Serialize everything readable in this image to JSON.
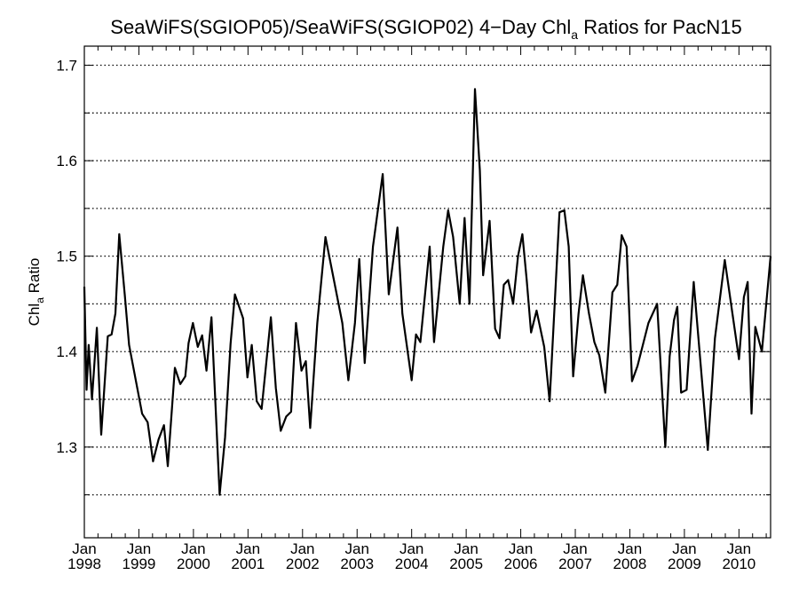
{
  "chart_data": {
    "type": "line",
    "title": {
      "prefix": "SeaWiFS(SGIOP05)/SeaWiFS(SGIOP02) 4−Day Chl",
      "subscript": "a",
      "suffix": " Ratios for PacN15"
    },
    "ylabel": {
      "prefix": "Chl",
      "subscript": "a",
      "suffix": " Ratio"
    },
    "xlabel": "",
    "xlim": [
      1998.0,
      2010.58
    ],
    "ylim": [
      1.205,
      1.72
    ],
    "y_ticks": [
      {
        "value": 1.3,
        "label": "1.3"
      },
      {
        "value": 1.4,
        "label": "1.4"
      },
      {
        "value": 1.5,
        "label": "1.5"
      },
      {
        "value": 1.6,
        "label": "1.6"
      },
      {
        "value": 1.7,
        "label": "1.7"
      }
    ],
    "y_minor_step": 0.05,
    "grid_y": [
      1.25,
      1.3,
      1.35,
      1.4,
      1.45,
      1.5,
      1.55,
      1.6,
      1.65,
      1.7
    ],
    "grid_style": "dotted",
    "x_ticks": [
      {
        "value": 1998,
        "month": "Jan",
        "year": "1998"
      },
      {
        "value": 1999,
        "month": "Jan",
        "year": "1999"
      },
      {
        "value": 2000,
        "month": "Jan",
        "year": "2000"
      },
      {
        "value": 2001,
        "month": "Jan",
        "year": "2001"
      },
      {
        "value": 2002,
        "month": "Jan",
        "year": "2002"
      },
      {
        "value": 2003,
        "month": "Jan",
        "year": "2003"
      },
      {
        "value": 2004,
        "month": "Jan",
        "year": "2004"
      },
      {
        "value": 2005,
        "month": "Jan",
        "year": "2005"
      },
      {
        "value": 2006,
        "month": "Jan",
        "year": "2006"
      },
      {
        "value": 2007,
        "month": "Jan",
        "year": "2007"
      },
      {
        "value": 2008,
        "month": "Jan",
        "year": "2008"
      },
      {
        "value": 2009,
        "month": "Jan",
        "year": "2009"
      },
      {
        "value": 2010,
        "month": "Jan",
        "year": "2010"
      }
    ],
    "x_minor_per_year": 4,
    "line_color": "#000000",
    "series": [
      {
        "x": [
          1998.0,
          1998.04,
          1998.08,
          1998.14,
          1998.23,
          1998.31,
          1998.43,
          1998.5,
          1998.57,
          1998.64,
          1998.74,
          1998.82,
          1999.06,
          1999.16,
          1999.26,
          1999.36,
          1999.46,
          1999.53,
          1999.66,
          1999.76,
          1999.85,
          1999.91,
          1999.99,
          2000.08,
          2000.16,
          2000.24,
          2000.33,
          2000.48,
          2000.58,
          2000.68,
          2000.76,
          2000.91,
          2000.99,
          2001.07,
          2001.16,
          2001.25,
          2001.42,
          2001.51,
          2001.6,
          2001.7,
          2001.79,
          2001.88,
          2001.98,
          2002.06,
          2002.14,
          2002.27,
          2002.42,
          2002.73,
          2002.84,
          2002.96,
          2003.04,
          2003.14,
          2003.29,
          2003.47,
          2003.58,
          2003.74,
          2003.83,
          2004.0,
          2004.08,
          2004.16,
          2004.33,
          2004.41,
          2004.58,
          2004.67,
          2004.76,
          2004.88,
          2004.97,
          2005.06,
          2005.16,
          2005.25,
          2005.31,
          2005.43,
          2005.53,
          2005.61,
          2005.69,
          2005.77,
          2005.86,
          2005.95,
          2006.03,
          2006.11,
          2006.19,
          2006.29,
          2006.43,
          2006.53,
          2006.71,
          2006.8,
          2006.88,
          2006.96,
          2007.06,
          2007.14,
          2007.25,
          2007.35,
          2007.44,
          2007.55,
          2007.68,
          2007.77,
          2007.85,
          2007.94,
          2008.04,
          2008.14,
          2008.34,
          2008.5,
          2008.65,
          2008.73,
          2008.81,
          2008.87,
          2008.94,
          2009.04,
          2009.17,
          2009.43,
          2009.56,
          2009.74,
          2009.88,
          2010.0,
          2010.09,
          2010.16,
          2010.23,
          2010.3,
          2010.42,
          2010.58
        ],
        "y": [
          1.468,
          1.36,
          1.407,
          1.35,
          1.425,
          1.313,
          1.416,
          1.418,
          1.44,
          1.523,
          1.46,
          1.407,
          1.335,
          1.326,
          1.285,
          1.308,
          1.323,
          1.28,
          1.383,
          1.366,
          1.374,
          1.409,
          1.43,
          1.405,
          1.417,
          1.38,
          1.436,
          1.25,
          1.31,
          1.408,
          1.46,
          1.435,
          1.373,
          1.407,
          1.348,
          1.34,
          1.436,
          1.362,
          1.317,
          1.332,
          1.337,
          1.43,
          1.38,
          1.39,
          1.32,
          1.43,
          1.52,
          1.43,
          1.37,
          1.43,
          1.497,
          1.388,
          1.51,
          1.586,
          1.46,
          1.53,
          1.44,
          1.37,
          1.418,
          1.41,
          1.51,
          1.41,
          1.51,
          1.548,
          1.52,
          1.45,
          1.54,
          1.45,
          1.675,
          1.59,
          1.48,
          1.537,
          1.424,
          1.414,
          1.47,
          1.475,
          1.45,
          1.5,
          1.523,
          1.475,
          1.42,
          1.443,
          1.405,
          1.348,
          1.546,
          1.548,
          1.51,
          1.374,
          1.44,
          1.48,
          1.44,
          1.41,
          1.396,
          1.357,
          1.462,
          1.47,
          1.522,
          1.51,
          1.369,
          1.385,
          1.43,
          1.45,
          1.3,
          1.395,
          1.433,
          1.447,
          1.357,
          1.36,
          1.473,
          1.297,
          1.414,
          1.496,
          1.44,
          1.392,
          1.457,
          1.473,
          1.335,
          1.426,
          1.4,
          1.5
        ]
      }
    ]
  }
}
